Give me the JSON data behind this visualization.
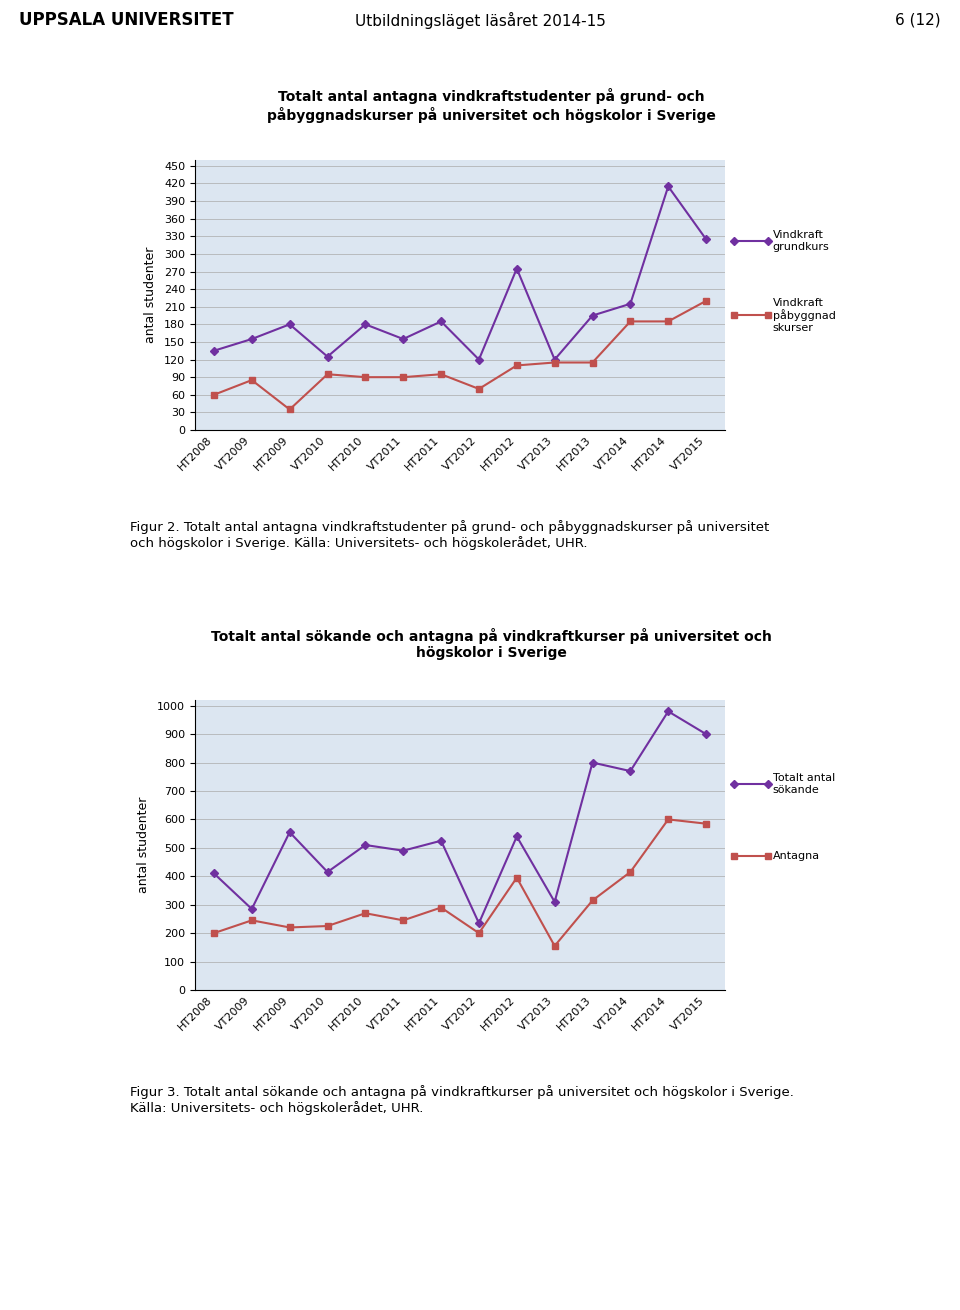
{
  "header_left": "UPPSALA UNIVERSITET",
  "header_center": "Utbildningsläget läsåret 2014-15",
  "header_right": "6 (12)",
  "x_labels": [
    "HT2008",
    "VT2009",
    "HT2009",
    "VT2010",
    "HT2010",
    "VT2011",
    "HT2011",
    "VT2012",
    "HT2012",
    "VT2013",
    "HT2013",
    "VT2014",
    "HT2014",
    "VT2015"
  ],
  "chart1_title": "Totalt antal antagna vindkraftstudenter på grund- och\npåbyggnadskurser på universitet och högskolor i Sverige",
  "chart1_yticks": [
    0,
    30,
    60,
    90,
    120,
    150,
    180,
    210,
    240,
    270,
    300,
    330,
    360,
    390,
    420,
    450
  ],
  "chart1_ylim": [
    0,
    460
  ],
  "chart1_ylabel": "antal studenter",
  "chart1_purple": [
    135,
    155,
    180,
    125,
    180,
    155,
    185,
    120,
    275,
    120,
    195,
    215,
    415,
    325
  ],
  "chart1_red": [
    60,
    85,
    35,
    95,
    90,
    90,
    95,
    70,
    110,
    115,
    115,
    185,
    185,
    220
  ],
  "chart1_legend_purple": "Vindkraft\ngrundkurs",
  "chart1_legend_red": "Vindkraft\npåbyggnad\nskurser",
  "chart2_title": "Totalt antal sökande och antagna på vindkraftkurser på universitet och\nhögskolor i Sverige",
  "chart2_yticks": [
    0,
    100,
    200,
    300,
    400,
    500,
    600,
    700,
    800,
    900,
    1000
  ],
  "chart2_ylim": [
    0,
    1020
  ],
  "chart2_ylabel": "antal studenter",
  "chart2_purple": [
    410,
    285,
    555,
    415,
    510,
    490,
    525,
    235,
    540,
    310,
    800,
    770,
    980,
    900
  ],
  "chart2_red": [
    200,
    245,
    220,
    225,
    270,
    245,
    290,
    200,
    395,
    155,
    315,
    415,
    600,
    585
  ],
  "chart2_legend_purple": "Totalt antal\nsökande",
  "chart2_legend_red": "Antagna",
  "caption1": "Figur 2. Totalt antal antagna vindkraftstudenter på grund- och påbyggnadskurser på universitet\noch högskolor i Sverige. Källa: Universitets- och högskolerådet, UHR.",
  "caption2": "Figur 3. Totalt antal sökande och antagna på vindkraftkurser på universitet och högskolor i Sverige.\nKälla: Universitets- och högskolerådet, UHR.",
  "purple_color": "#7030A0",
  "red_color": "#C0504D",
  "bg_color": "#B8CCE4",
  "plot_bg_color": "#DCE6F1",
  "header_bg": "#FFFFFF"
}
